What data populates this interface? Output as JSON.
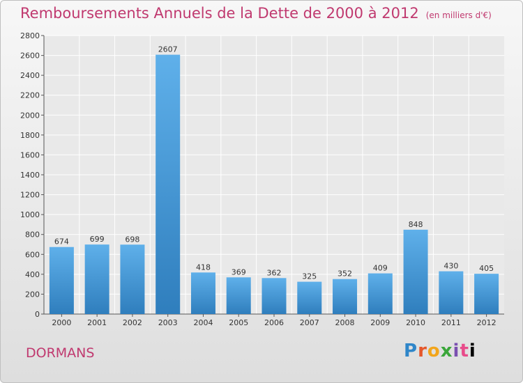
{
  "title": "Remboursements Annuels de la Dette de 2000 à 2012",
  "subtitle": "(en milliers d'€)",
  "place": "DORMANS",
  "logo": [
    "P",
    "r",
    "o",
    "x",
    "i",
    "t",
    "i"
  ],
  "colors": {
    "title": "#c0396f",
    "bar_top": "#5fb0ea",
    "bar_bottom": "#2f7ebd",
    "grid": "#ffffff",
    "background": "#e9e9e9"
  },
  "chart_data": {
    "type": "bar",
    "categories": [
      "2000",
      "2001",
      "2002",
      "2003",
      "2004",
      "2005",
      "2006",
      "2007",
      "2008",
      "2009",
      "2010",
      "2011",
      "2012"
    ],
    "values": [
      674,
      699,
      698,
      2607,
      418,
      369,
      362,
      325,
      352,
      409,
      848,
      430,
      405
    ],
    "data_labels": [
      "674",
      "699",
      "698",
      "2607",
      "418",
      "369",
      "362",
      "325",
      "352",
      "409",
      "848",
      "430",
      "405"
    ],
    "yticks": [
      0,
      200,
      400,
      600,
      800,
      1000,
      1200,
      1400,
      1600,
      1800,
      2000,
      2200,
      2400,
      2600,
      2800
    ],
    "ylim": [
      0,
      2800
    ],
    "grid": true,
    "title": "Remboursements Annuels de la Dette de 2000 à 2012",
    "subtitle": "(en milliers d'€)"
  }
}
